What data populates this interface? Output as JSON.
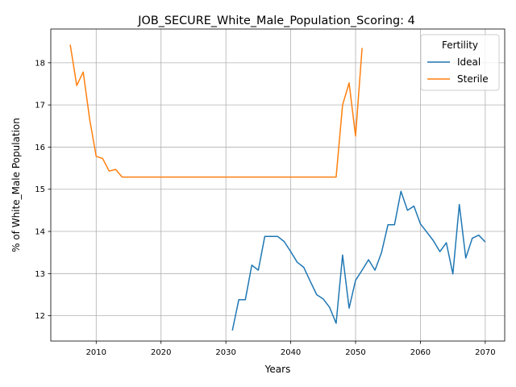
{
  "chart_data": {
    "type": "line",
    "title": "JOB_SECURE_White_Male_Population_Scoring: 4",
    "xlabel": "Years",
    "ylabel": "% of White_Male Population",
    "xlim": [
      2003.0,
      2073.0
    ],
    "ylim": [
      11.4,
      18.8
    ],
    "x_ticks": [
      2010,
      2020,
      2030,
      2040,
      2050,
      2060,
      2070
    ],
    "x_tick_labels": [
      "2010",
      "2020",
      "2030",
      "2040",
      "2050",
      "2060",
      "2070"
    ],
    "y_ticks": [
      12,
      13,
      14,
      15,
      16,
      17,
      18
    ],
    "y_tick_labels": [
      "12",
      "13",
      "14",
      "15",
      "16",
      "17",
      "18"
    ],
    "grid": true,
    "legend": {
      "title": "Fertility",
      "position": "top-right"
    },
    "series": [
      {
        "name": "Ideal",
        "color": "#1f77b4",
        "points": [
          [
            2031,
            11.65
          ],
          [
            2032,
            12.38
          ],
          [
            2033,
            12.38
          ],
          [
            2034,
            13.2
          ],
          [
            2035,
            13.08
          ],
          [
            2036,
            13.88
          ],
          [
            2037,
            13.88
          ],
          [
            2038,
            13.88
          ],
          [
            2039,
            13.76
          ],
          [
            2040,
            13.52
          ],
          [
            2041,
            13.27
          ],
          [
            2042,
            13.15
          ],
          [
            2043,
            12.82
          ],
          [
            2044,
            12.5
          ],
          [
            2045,
            12.4
          ],
          [
            2046,
            12.2
          ],
          [
            2047,
            11.82
          ],
          [
            2048,
            13.44
          ],
          [
            2049,
            12.18
          ],
          [
            2050,
            12.84
          ],
          [
            2051,
            13.08
          ],
          [
            2052,
            13.33
          ],
          [
            2053,
            13.08
          ],
          [
            2054,
            13.5
          ],
          [
            2055,
            14.16
          ],
          [
            2056,
            14.16
          ],
          [
            2057,
            14.95
          ],
          [
            2058,
            14.5
          ],
          [
            2059,
            14.6
          ],
          [
            2060,
            14.18
          ],
          [
            2061,
            13.98
          ],
          [
            2062,
            13.78
          ],
          [
            2063,
            13.52
          ],
          [
            2064,
            13.73
          ],
          [
            2065,
            12.99
          ],
          [
            2066,
            14.64
          ],
          [
            2067,
            13.37
          ],
          [
            2068,
            13.84
          ],
          [
            2069,
            13.91
          ],
          [
            2070,
            13.75
          ]
        ]
      },
      {
        "name": "Sterile",
        "color": "#ff7f0e",
        "points": [
          [
            2006,
            18.43
          ],
          [
            2007,
            17.46
          ],
          [
            2008,
            17.78
          ],
          [
            2009,
            16.65
          ],
          [
            2010,
            15.78
          ],
          [
            2011,
            15.73
          ],
          [
            2012,
            15.43
          ],
          [
            2013,
            15.47
          ],
          [
            2014,
            15.29
          ],
          [
            2015,
            15.29
          ],
          [
            2020,
            15.29
          ],
          [
            2025,
            15.29
          ],
          [
            2030,
            15.29
          ],
          [
            2035,
            15.29
          ],
          [
            2040,
            15.29
          ],
          [
            2045,
            15.29
          ],
          [
            2047,
            15.29
          ],
          [
            2048,
            17.0
          ],
          [
            2049,
            17.52
          ],
          [
            2050,
            16.26
          ],
          [
            2051,
            18.35
          ]
        ]
      }
    ]
  }
}
